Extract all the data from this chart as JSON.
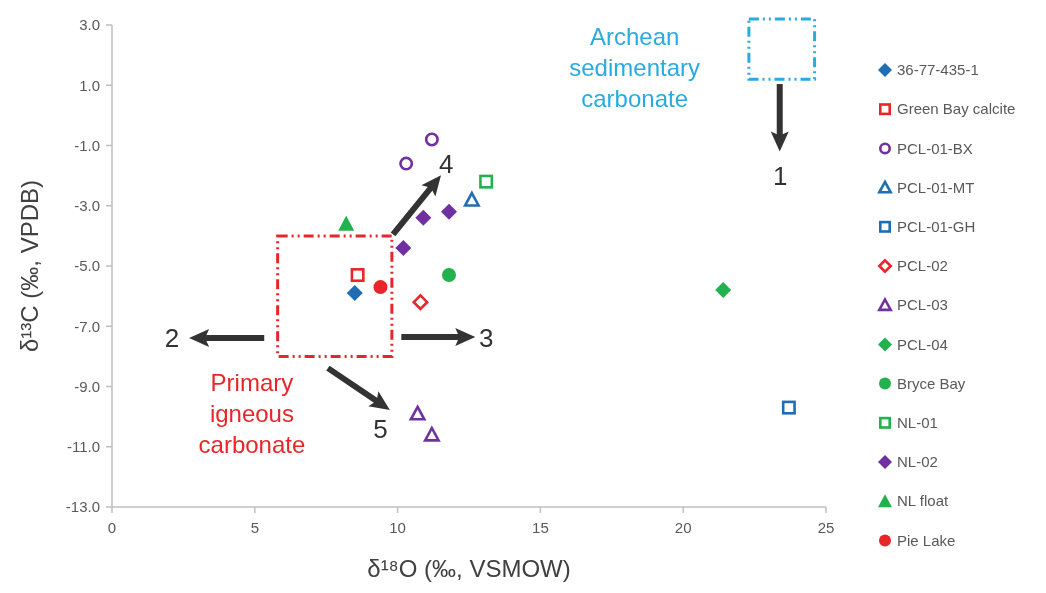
{
  "chart_data": {
    "type": "scatter",
    "xlabel": "δ¹⁸O (‰, VSMOW)",
    "ylabel": "δ¹³C (‰, VPDB)",
    "xlim": [
      0,
      25
    ],
    "xticks": [
      0,
      5,
      10,
      15,
      20,
      25
    ],
    "ylim": [
      -13,
      3
    ],
    "yticks": [
      {
        "value": -13,
        "label": "-13.0"
      },
      {
        "value": -11,
        "label": "-11.0"
      },
      {
        "value": -9,
        "label": "-9.0"
      },
      {
        "value": -7,
        "label": "-7.0"
      },
      {
        "value": -5,
        "label": "-5.0"
      },
      {
        "value": -3,
        "label": "-3.0"
      },
      {
        "value": -1,
        "label": "-1.0"
      },
      {
        "value": 1,
        "label": "1.0"
      },
      {
        "value": 3,
        "label": "3.0"
      }
    ],
    "grid": false,
    "legend": "right",
    "series": [
      {
        "name": "36-77-435-1",
        "color": "#1f6db5",
        "marker": "diamond",
        "x": [
          8.5
        ],
        "values": [
          -5.9
        ]
      },
      {
        "name": "Green Bay calcite",
        "color": "#e8262a",
        "marker": "square-open",
        "x": [
          8.6
        ],
        "values": [
          -5.3
        ]
      },
      {
        "name": "PCL-01-BX",
        "color": "#7030a0",
        "marker": "circle-open",
        "x": [
          10.3,
          11.2
        ],
        "values": [
          -1.6,
          -0.8
        ]
      },
      {
        "name": "PCL-01-MT",
        "color": "#1f6db5",
        "marker": "triangle-open",
        "x": [
          12.6
        ],
        "values": [
          -2.8
        ]
      },
      {
        "name": "PCL-01-GH",
        "color": "#1f6db5",
        "marker": "square-open",
        "x": [
          23.7
        ],
        "values": [
          -9.7
        ]
      },
      {
        "name": "PCL-02",
        "color": "#e8262a",
        "marker": "diamond-open",
        "x": [
          10.8
        ],
        "values": [
          -6.2
        ]
      },
      {
        "name": "PCL-03",
        "color": "#7030a0",
        "marker": "triangle-open",
        "x": [
          10.7,
          11.2
        ],
        "values": [
          -9.9,
          -10.6
        ]
      },
      {
        "name": "PCL-04",
        "color": "#22b14c",
        "marker": "diamond",
        "x": [
          21.4
        ],
        "values": [
          -5.8
        ]
      },
      {
        "name": "Bryce Bay",
        "color": "#22b14c",
        "marker": "circle",
        "x": [
          11.8
        ],
        "values": [
          -5.3
        ]
      },
      {
        "name": "NL-01",
        "color": "#22b14c",
        "marker": "square-open",
        "x": [
          13.1
        ],
        "values": [
          -2.2
        ]
      },
      {
        "name": "NL-02",
        "color": "#7030a0",
        "marker": "diamond",
        "x": [
          10.2,
          10.9,
          11.8
        ],
        "values": [
          -4.4,
          -3.4,
          -3.2
        ]
      },
      {
        "name": "NL float",
        "color": "#22b14c",
        "marker": "triangle",
        "x": [
          8.2
        ],
        "values": [
          -3.6
        ]
      },
      {
        "name": "Pie Lake",
        "color": "#e8262a",
        "marker": "circle",
        "x": [
          9.4
        ],
        "values": [
          -5.7
        ]
      }
    ],
    "annotations": [
      "Archean sedimentary carbonate",
      "Primary igneous carbonate",
      "1",
      "2",
      "3",
      "4",
      "5"
    ]
  }
}
